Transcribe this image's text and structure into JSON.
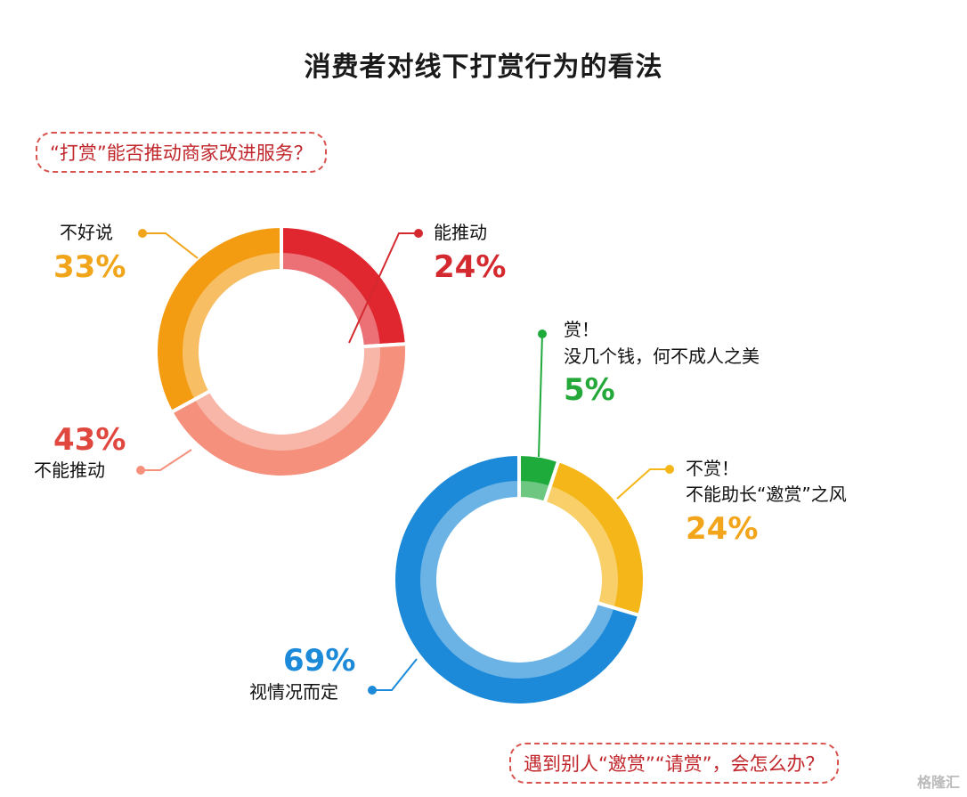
{
  "title": "消费者对线下打赏行为的看法",
  "watermark": "格隆汇",
  "chart_data": [
    {
      "type": "pie",
      "title": "“打赏”能否推动商家改进服务？",
      "slices": [
        {
          "label": "能推动",
          "value": 24,
          "display": "24%",
          "color": "#e0262e"
        },
        {
          "label": "不能推动",
          "value": 43,
          "display": "43%",
          "color": "#f5907c"
        },
        {
          "label": "不好说",
          "value": 33,
          "display": "33%",
          "color": "#f39c12"
        }
      ]
    },
    {
      "type": "pie",
      "title": "遇到别人“邀赏”“请赏”，会怎么办？",
      "slices": [
        {
          "label": "赏！没几个钱，何不成人之美",
          "line1": "赏！",
          "line2": "没几个钱，何不成人之美",
          "value": 5,
          "display": "5%",
          "color": "#1faa3c"
        },
        {
          "label": "不赏！不能助长“邀赏”之风",
          "line1": "不赏！",
          "line2": "不能助长“邀赏”之风",
          "value": 24,
          "display": "24%",
          "color": "#f5b619"
        },
        {
          "label": "视情况而定",
          "value": 69,
          "display": "69%",
          "color": "#1c8ad8"
        }
      ]
    }
  ]
}
